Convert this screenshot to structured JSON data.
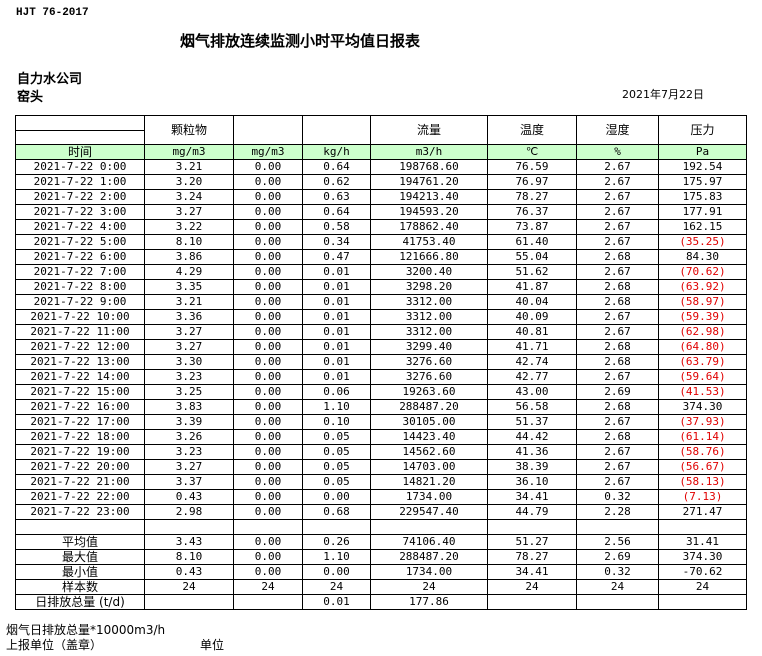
{
  "standard": "HJT  76-2017",
  "title": "烟气排放连续监测小时平均值日报表",
  "company": "自力水公司",
  "site": "窑头",
  "report_date": "2021年7月22日",
  "header": {
    "columns": [
      "",
      "颗粒物",
      "",
      "",
      "流量",
      "温度",
      "湿度",
      "压力"
    ],
    "units": [
      "时间",
      "mg/m3",
      "mg/m3",
      "kg/h",
      "m3/h",
      "℃",
      "%",
      "Pa"
    ]
  },
  "negative_color": "#e00000",
  "unit_row_color": "#ccffcc",
  "rows": [
    [
      "2021-7-22 0:00",
      "3.21",
      "0.00",
      "0.64",
      "198768.60",
      "76.59",
      "2.67",
      "192.54"
    ],
    [
      "2021-7-22 1:00",
      "3.20",
      "0.00",
      "0.62",
      "194761.20",
      "76.97",
      "2.67",
      "175.97"
    ],
    [
      "2021-7-22 2:00",
      "3.24",
      "0.00",
      "0.63",
      "194213.40",
      "78.27",
      "2.67",
      "175.83"
    ],
    [
      "2021-7-22 3:00",
      "3.27",
      "0.00",
      "0.64",
      "194593.20",
      "76.37",
      "2.67",
      "177.91"
    ],
    [
      "2021-7-22 4:00",
      "3.22",
      "0.00",
      "0.58",
      "178862.40",
      "73.87",
      "2.67",
      "162.15"
    ],
    [
      "2021-7-22 5:00",
      "8.10",
      "0.00",
      "0.34",
      "41753.40",
      "61.40",
      "2.67",
      "(35.25)"
    ],
    [
      "2021-7-22 6:00",
      "3.86",
      "0.00",
      "0.47",
      "121666.80",
      "55.04",
      "2.68",
      "84.30"
    ],
    [
      "2021-7-22 7:00",
      "4.29",
      "0.00",
      "0.01",
      "3200.40",
      "51.62",
      "2.67",
      "(70.62)"
    ],
    [
      "2021-7-22 8:00",
      "3.35",
      "0.00",
      "0.01",
      "3298.20",
      "41.87",
      "2.68",
      "(63.92)"
    ],
    [
      "2021-7-22 9:00",
      "3.21",
      "0.00",
      "0.01",
      "3312.00",
      "40.04",
      "2.68",
      "(58.97)"
    ],
    [
      "2021-7-22 10:00",
      "3.36",
      "0.00",
      "0.01",
      "3312.00",
      "40.09",
      "2.67",
      "(59.39)"
    ],
    [
      "2021-7-22 11:00",
      "3.27",
      "0.00",
      "0.01",
      "3312.00",
      "40.81",
      "2.67",
      "(62.98)"
    ],
    [
      "2021-7-22 12:00",
      "3.27",
      "0.00",
      "0.01",
      "3299.40",
      "41.71",
      "2.68",
      "(64.80)"
    ],
    [
      "2021-7-22 13:00",
      "3.30",
      "0.00",
      "0.01",
      "3276.60",
      "42.74",
      "2.68",
      "(63.79)"
    ],
    [
      "2021-7-22 14:00",
      "3.23",
      "0.00",
      "0.01",
      "3276.60",
      "42.77",
      "2.67",
      "(59.64)"
    ],
    [
      "2021-7-22 15:00",
      "3.25",
      "0.00",
      "0.06",
      "19263.60",
      "43.00",
      "2.69",
      "(41.53)"
    ],
    [
      "2021-7-22 16:00",
      "3.83",
      "0.00",
      "1.10",
      "288487.20",
      "56.58",
      "2.68",
      "374.30"
    ],
    [
      "2021-7-22 17:00",
      "3.39",
      "0.00",
      "0.10",
      "30105.00",
      "51.37",
      "2.67",
      "(37.93)"
    ],
    [
      "2021-7-22 18:00",
      "3.26",
      "0.00",
      "0.05",
      "14423.40",
      "44.42",
      "2.68",
      "(61.14)"
    ],
    [
      "2021-7-22 19:00",
      "3.23",
      "0.00",
      "0.05",
      "14562.60",
      "41.36",
      "2.67",
      "(58.76)"
    ],
    [
      "2021-7-22 20:00",
      "3.27",
      "0.00",
      "0.05",
      "14703.00",
      "38.39",
      "2.67",
      "(56.67)"
    ],
    [
      "2021-7-22 21:00",
      "3.37",
      "0.00",
      "0.05",
      "14821.20",
      "36.10",
      "2.67",
      "(58.13)"
    ],
    [
      "2021-7-22 22:00",
      "0.43",
      "0.00",
      "0.00",
      "1734.00",
      "34.41",
      "0.32",
      "(7.13)"
    ],
    [
      "2021-7-22 23:00",
      "2.98",
      "0.00",
      "0.68",
      "229547.40",
      "44.79",
      "2.28",
      "271.47"
    ]
  ],
  "summary": [
    [
      "",
      "",
      "",
      "",
      "",
      "",
      "",
      ""
    ],
    [
      "平均值",
      "3.43",
      "0.00",
      "0.26",
      "74106.40",
      "51.27",
      "2.56",
      "31.41"
    ],
    [
      "最大值",
      "8.10",
      "0.00",
      "1.10",
      "288487.20",
      "78.27",
      "2.69",
      "374.30"
    ],
    [
      "最小值",
      "0.43",
      "0.00",
      "0.00",
      "1734.00",
      "34.41",
      "0.32",
      "-70.62"
    ],
    [
      "样本数",
      "24",
      "24",
      "24",
      "24",
      "24",
      "24",
      "24"
    ],
    [
      "日排放总量 (t/d)",
      "",
      "",
      "0.01",
      "177.86",
      "",
      "",
      ""
    ]
  ],
  "footer": {
    "note": "烟气日排放总量*10000m3/h",
    "reporter": "上报单位（盖章）",
    "unit": "单位"
  }
}
